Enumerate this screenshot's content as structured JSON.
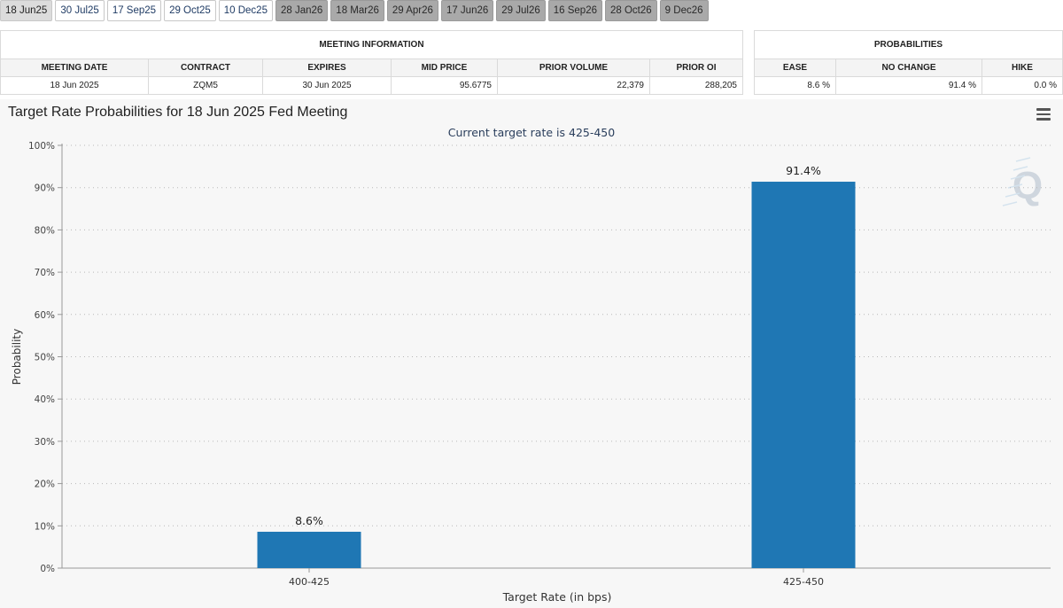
{
  "tabs": [
    {
      "label": "18 Jun25",
      "style": "active"
    },
    {
      "label": "30 Jul25",
      "style": "white"
    },
    {
      "label": "17 Sep25",
      "style": "white"
    },
    {
      "label": "29 Oct25",
      "style": "white"
    },
    {
      "label": "10 Dec25",
      "style": "white"
    },
    {
      "label": "28 Jan26",
      "style": "gray"
    },
    {
      "label": "18 Mar26",
      "style": "gray"
    },
    {
      "label": "29 Apr26",
      "style": "gray"
    },
    {
      "label": "17 Jun26",
      "style": "gray"
    },
    {
      "label": "29 Jul26",
      "style": "gray"
    },
    {
      "label": "16 Sep26",
      "style": "gray"
    },
    {
      "label": "28 Oct26",
      "style": "gray"
    },
    {
      "label": "9 Dec26",
      "style": "gray"
    }
  ],
  "meeting_info": {
    "heading": "MEETING INFORMATION",
    "columns": [
      "MEETING DATE",
      "CONTRACT",
      "EXPIRES",
      "MID PRICE",
      "PRIOR VOLUME",
      "PRIOR OI"
    ],
    "row": [
      "18 Jun 2025",
      "ZQM5",
      "30 Jun 2025",
      "95.6775",
      "22,379",
      "288,205"
    ]
  },
  "probabilities": {
    "heading": "PROBABILITIES",
    "columns": [
      "EASE",
      "NO CHANGE",
      "HIKE"
    ],
    "row": [
      "8.6 %",
      "91.4 %",
      "0.0 %"
    ]
  },
  "chart": {
    "title": "Target Rate Probabilities for 18 Jun 2025 Fed Meeting",
    "subtitle": "Current target rate is 425-450",
    "menu_icon": "hamburger-menu-icon",
    "watermark": "Q",
    "bar_color": "#1f77b4"
  },
  "chart_data": {
    "type": "bar",
    "categories": [
      "400-425",
      "425-450"
    ],
    "values": [
      8.6,
      91.4
    ],
    "data_labels": [
      "8.6%",
      "91.4%"
    ],
    "xlabel": "Target Rate (in bps)",
    "ylabel": "Probability",
    "ylim": [
      0,
      100
    ],
    "yticks": [
      0,
      10,
      20,
      30,
      40,
      50,
      60,
      70,
      80,
      90,
      100
    ],
    "ytick_labels": [
      "0%",
      "10%",
      "20%",
      "30%",
      "40%",
      "50%",
      "60%",
      "70%",
      "80%",
      "90%",
      "100%"
    ],
    "grid": true
  }
}
